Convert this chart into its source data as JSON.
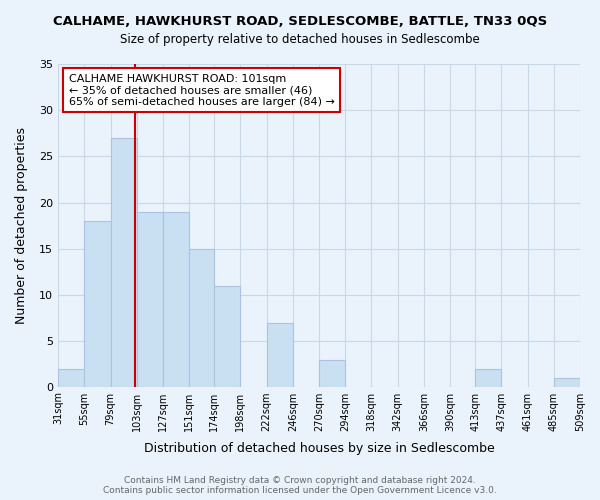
{
  "title": "CALHAME, HAWKHURST ROAD, SEDLESCOMBE, BATTLE, TN33 0QS",
  "subtitle": "Size of property relative to detached houses in Sedlescombe",
  "xlabel": "Distribution of detached houses by size in Sedlescombe",
  "ylabel": "Number of detached properties",
  "footer_line1": "Contains HM Land Registry data © Crown copyright and database right 2024.",
  "footer_line2": "Contains public sector information licensed under the Open Government Licence v3.0.",
  "annotation_line1": "CALHAME HAWKHURST ROAD: 101sqm",
  "annotation_line2": "← 35% of detached houses are smaller (46)",
  "annotation_line3": "65% of semi-detached houses are larger (84) →",
  "bar_edges": [
    31,
    55,
    79,
    103,
    127,
    151,
    174,
    198,
    222,
    246,
    270,
    294,
    318,
    342,
    366,
    390,
    413,
    437,
    461,
    485,
    509
  ],
  "bar_heights": [
    2,
    18,
    27,
    19,
    19,
    15,
    11,
    0,
    7,
    0,
    3,
    0,
    0,
    0,
    0,
    0,
    2,
    0,
    0,
    1
  ],
  "bar_color": "#c9dff2",
  "bar_edge_color": "#aac4e0",
  "vline_x": 101,
  "vline_color": "#cc0000",
  "ylim": [
    0,
    35
  ],
  "yticks": [
    0,
    5,
    10,
    15,
    20,
    25,
    30,
    35
  ],
  "annotation_box_color": "#ffffff",
  "annotation_box_edge_color": "#cc0000",
  "grid_color": "#c8d8e8",
  "bg_color": "#eaf3fb"
}
